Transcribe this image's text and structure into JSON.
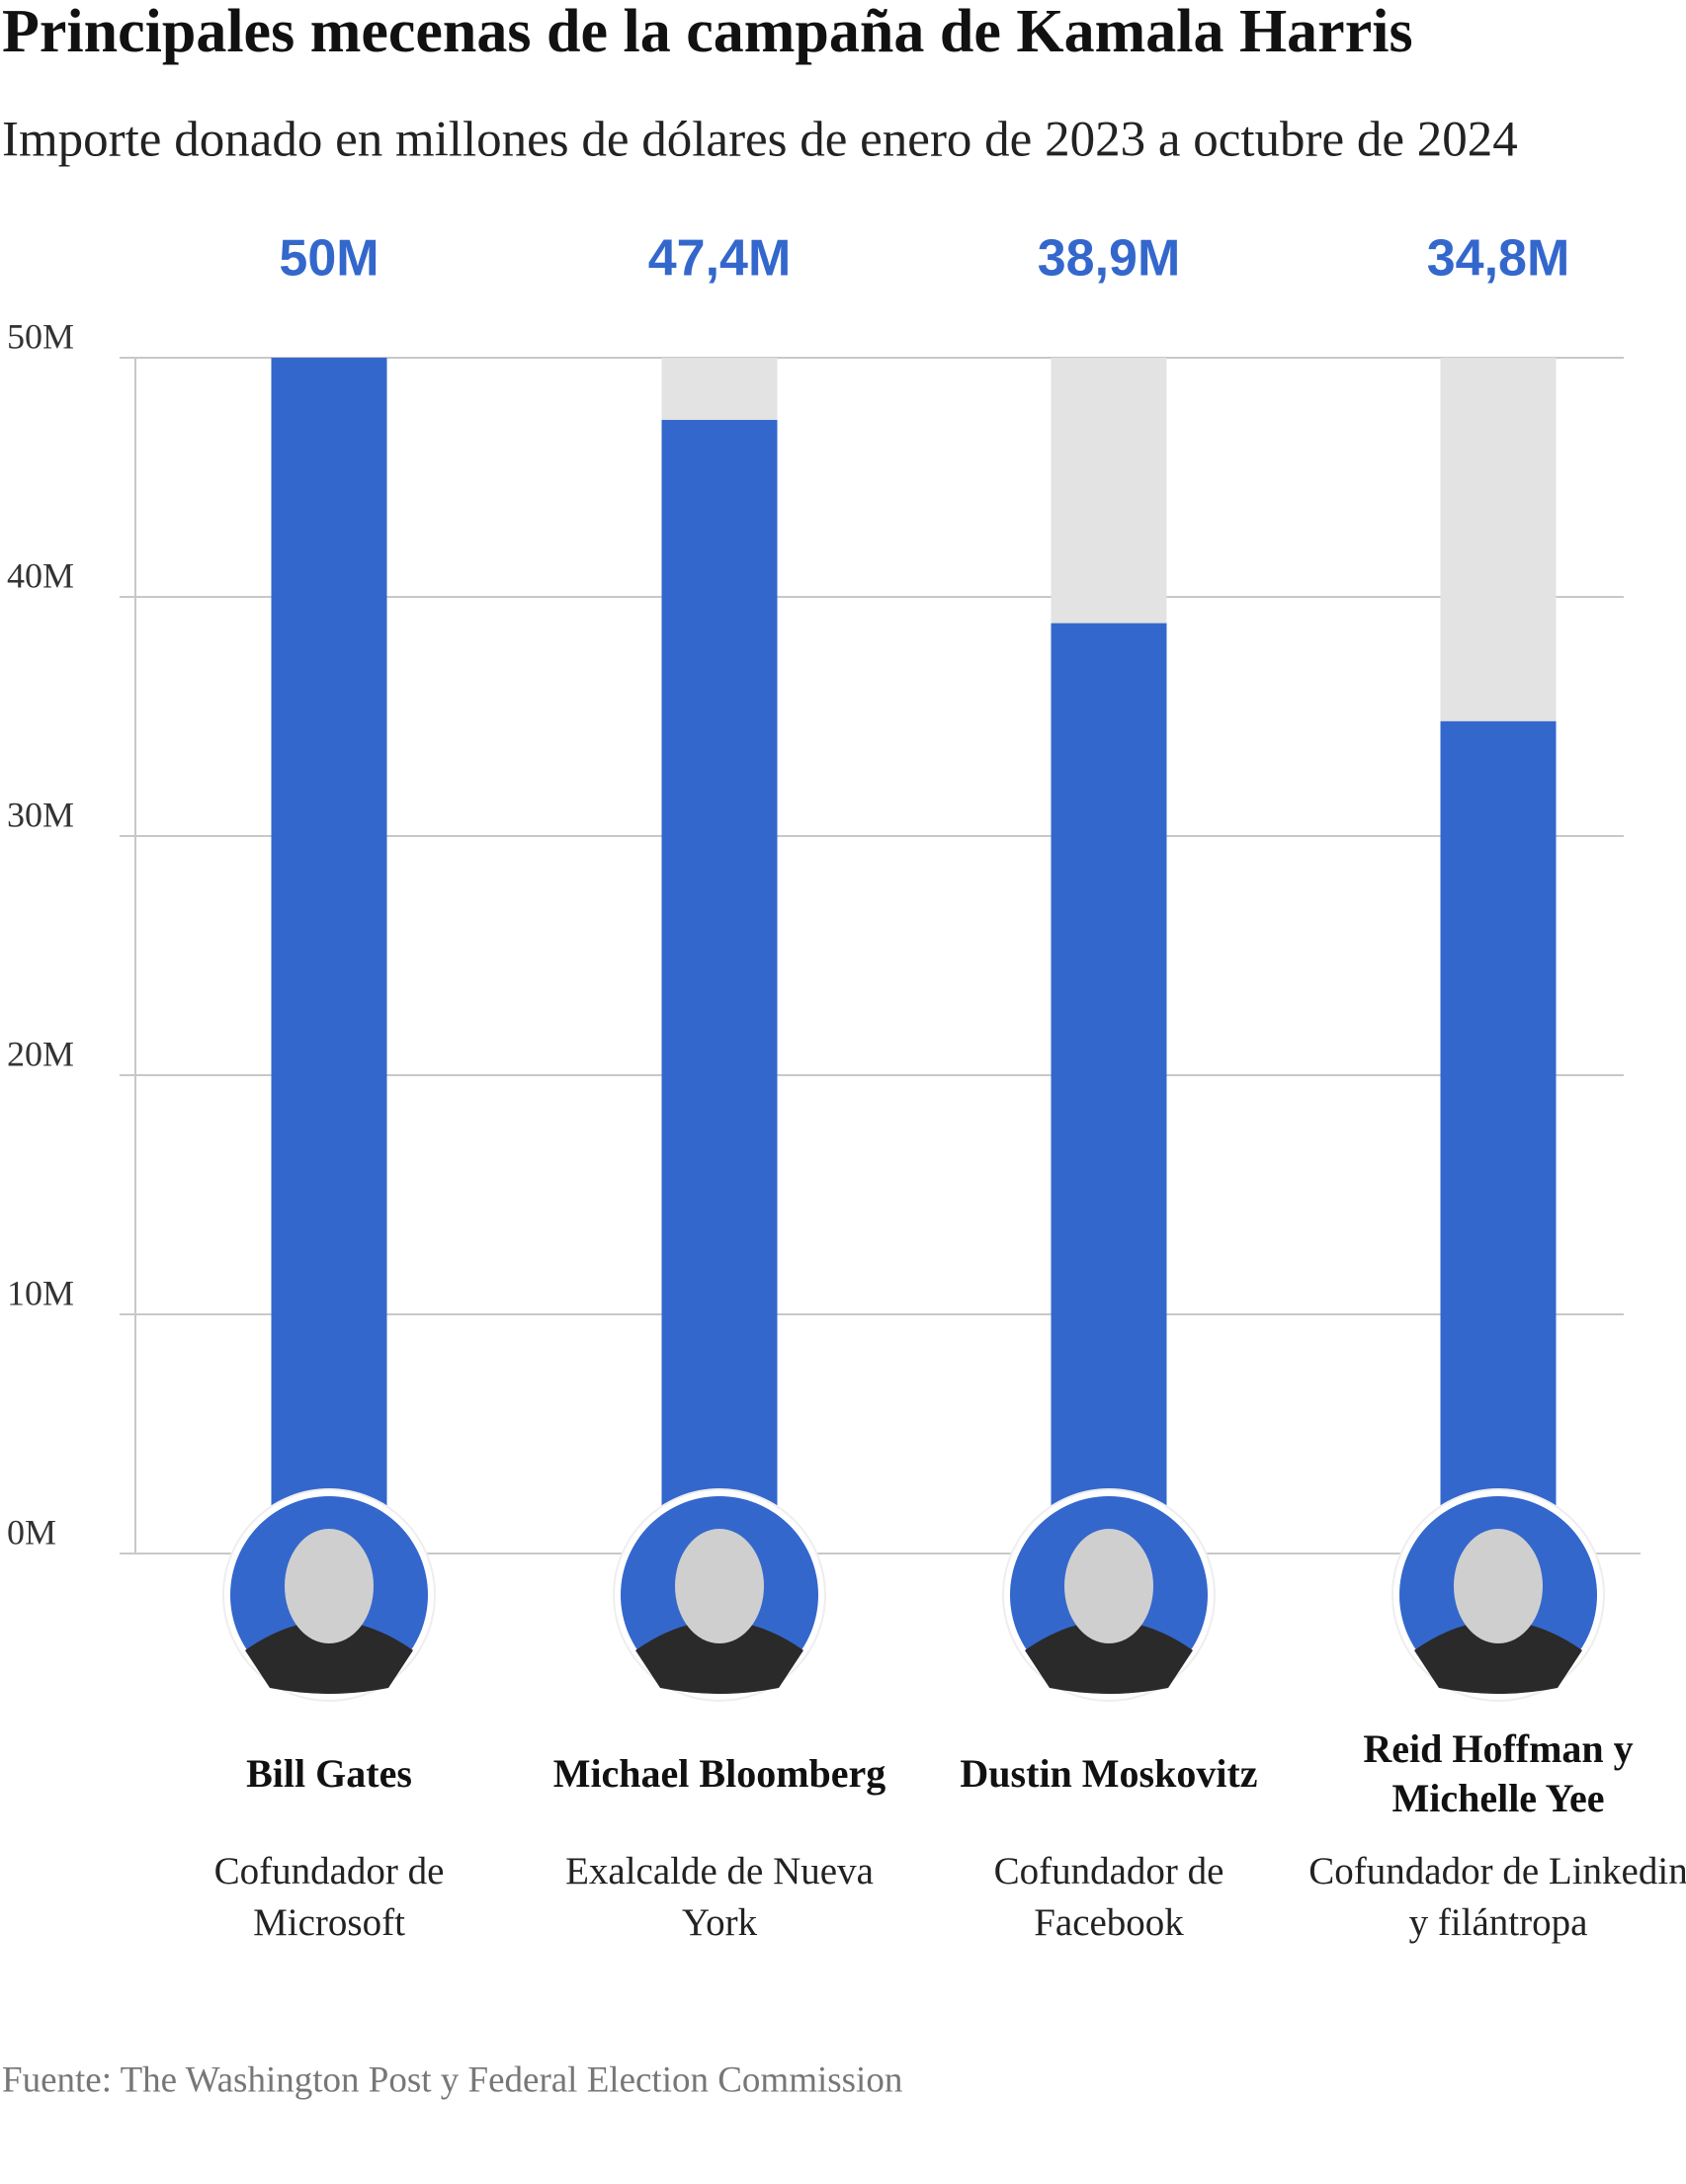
{
  "chart_data": {
    "type": "bar",
    "title": "Principales mecenas de la campaña de Kamala Harris",
    "subtitle": "Importe donado en millones de dólares de enero de 2023 a octubre de 2024",
    "categories": [
      "Bill Gates",
      "Michael Bloomberg",
      "Dustin Moskovitz",
      "Reid Hoffman y Michelle Yee"
    ],
    "descriptions": [
      "Cofundador de Microsoft",
      "Exalcalde de Nueva York",
      "Cofundador de Facebook",
      "Cofundador de Linkedin y filántropa"
    ],
    "values": [
      50,
      47.4,
      38.9,
      34.8
    ],
    "value_labels": [
      "50M",
      "47,4M",
      "38,9M",
      "34,8M"
    ],
    "color": "#3467cc",
    "track_color": "#e3e3e3",
    "ylim": [
      0,
      50
    ],
    "yticks": [
      {
        "value": 0,
        "label": "0M"
      },
      {
        "value": 10,
        "label": "10M"
      },
      {
        "value": 20,
        "label": "20M"
      },
      {
        "value": 30,
        "label": "30M"
      },
      {
        "value": 40,
        "label": "40M"
      },
      {
        "value": 50,
        "label": "50M"
      }
    ],
    "grid": true,
    "source": "Fuente: The Washington Post y Federal Election Commission"
  }
}
